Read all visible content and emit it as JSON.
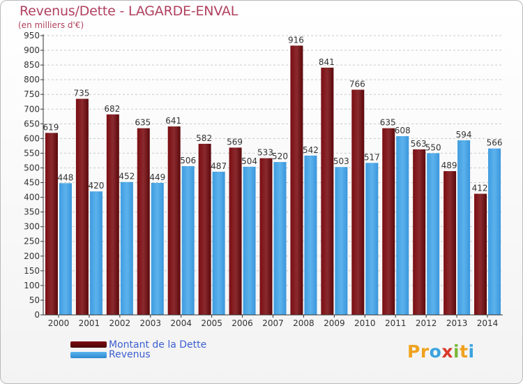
{
  "title": "Revenus/Dette - LAGARDE-ENVAL",
  "subtitle": "(en milliers d'€)",
  "legend": {
    "debt_label": "Montant de la Dette",
    "revenue_label": "Revenus"
  },
  "logo": {
    "letters": [
      "P",
      "r",
      "o",
      "x",
      "i",
      "t",
      "i"
    ],
    "colors": [
      "#f0a21e",
      "#f0a21e",
      "#3aa3dd",
      "#d93a2b",
      "#79b83a",
      "#f0a21e",
      "#3aa3dd"
    ]
  },
  "colors": {
    "debt": "#6e0b0f",
    "revenue": "#48a4e6",
    "axis": "#333333",
    "grid": "#c8c8c8"
  },
  "chart_data": {
    "type": "bar",
    "categories": [
      "2000",
      "2001",
      "2002",
      "2003",
      "2004",
      "2005",
      "2006",
      "2007",
      "2008",
      "2009",
      "2010",
      "2011",
      "2012",
      "2013",
      "2014"
    ],
    "series": [
      {
        "name": "Montant de la Dette",
        "values": [
          619,
          735,
          682,
          635,
          641,
          582,
          569,
          533,
          916,
          841,
          766,
          635,
          563,
          489,
          412
        ]
      },
      {
        "name": "Revenus",
        "values": [
          448,
          420,
          452,
          449,
          506,
          487,
          504,
          520,
          542,
          503,
          517,
          608,
          550,
          594,
          566
        ]
      }
    ],
    "yticks": [
      "0",
      "50",
      "100",
      "150",
      "200",
      "250",
      "300",
      "350",
      "400",
      "450",
      "500",
      "550",
      "600",
      "650",
      "700",
      "750",
      "800",
      "850",
      "900",
      "950"
    ],
    "ylim": [
      0,
      950
    ],
    "grid": true,
    "legend_position": "bottom-left"
  }
}
